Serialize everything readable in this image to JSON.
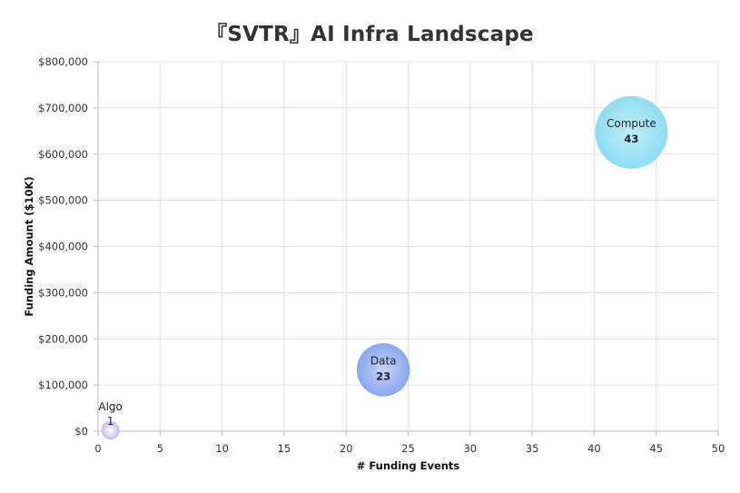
{
  "chart_data": {
    "type": "scatter",
    "title": "『SVTR』AI Infra Landscape",
    "xlabel": "# Funding Events",
    "ylabel": "Funding Amount ($10K)",
    "xlim": [
      0,
      50
    ],
    "ylim": [
      0,
      800000
    ],
    "x_ticks": [
      0,
      5,
      10,
      15,
      20,
      25,
      30,
      35,
      40,
      45,
      50
    ],
    "y_ticks": [
      0,
      100000,
      200000,
      300000,
      400000,
      500000,
      600000,
      700000,
      800000
    ],
    "y_tick_labels": [
      "$0",
      "$100,000",
      "$200,000",
      "$300,000",
      "$400,000",
      "$500,000",
      "$600,000",
      "$700,000",
      "$800,000"
    ],
    "grid": true,
    "points": [
      {
        "name": "Algo",
        "x": 1,
        "y": 2000,
        "label": "1",
        "color": "#c8b6f2"
      },
      {
        "name": "Data",
        "x": 23,
        "y": 133000,
        "label": "23",
        "color": "#8aa6ee"
      },
      {
        "name": "Compute",
        "x": 43,
        "y": 647000,
        "label": "43",
        "color": "#8fdcf2"
      }
    ]
  }
}
